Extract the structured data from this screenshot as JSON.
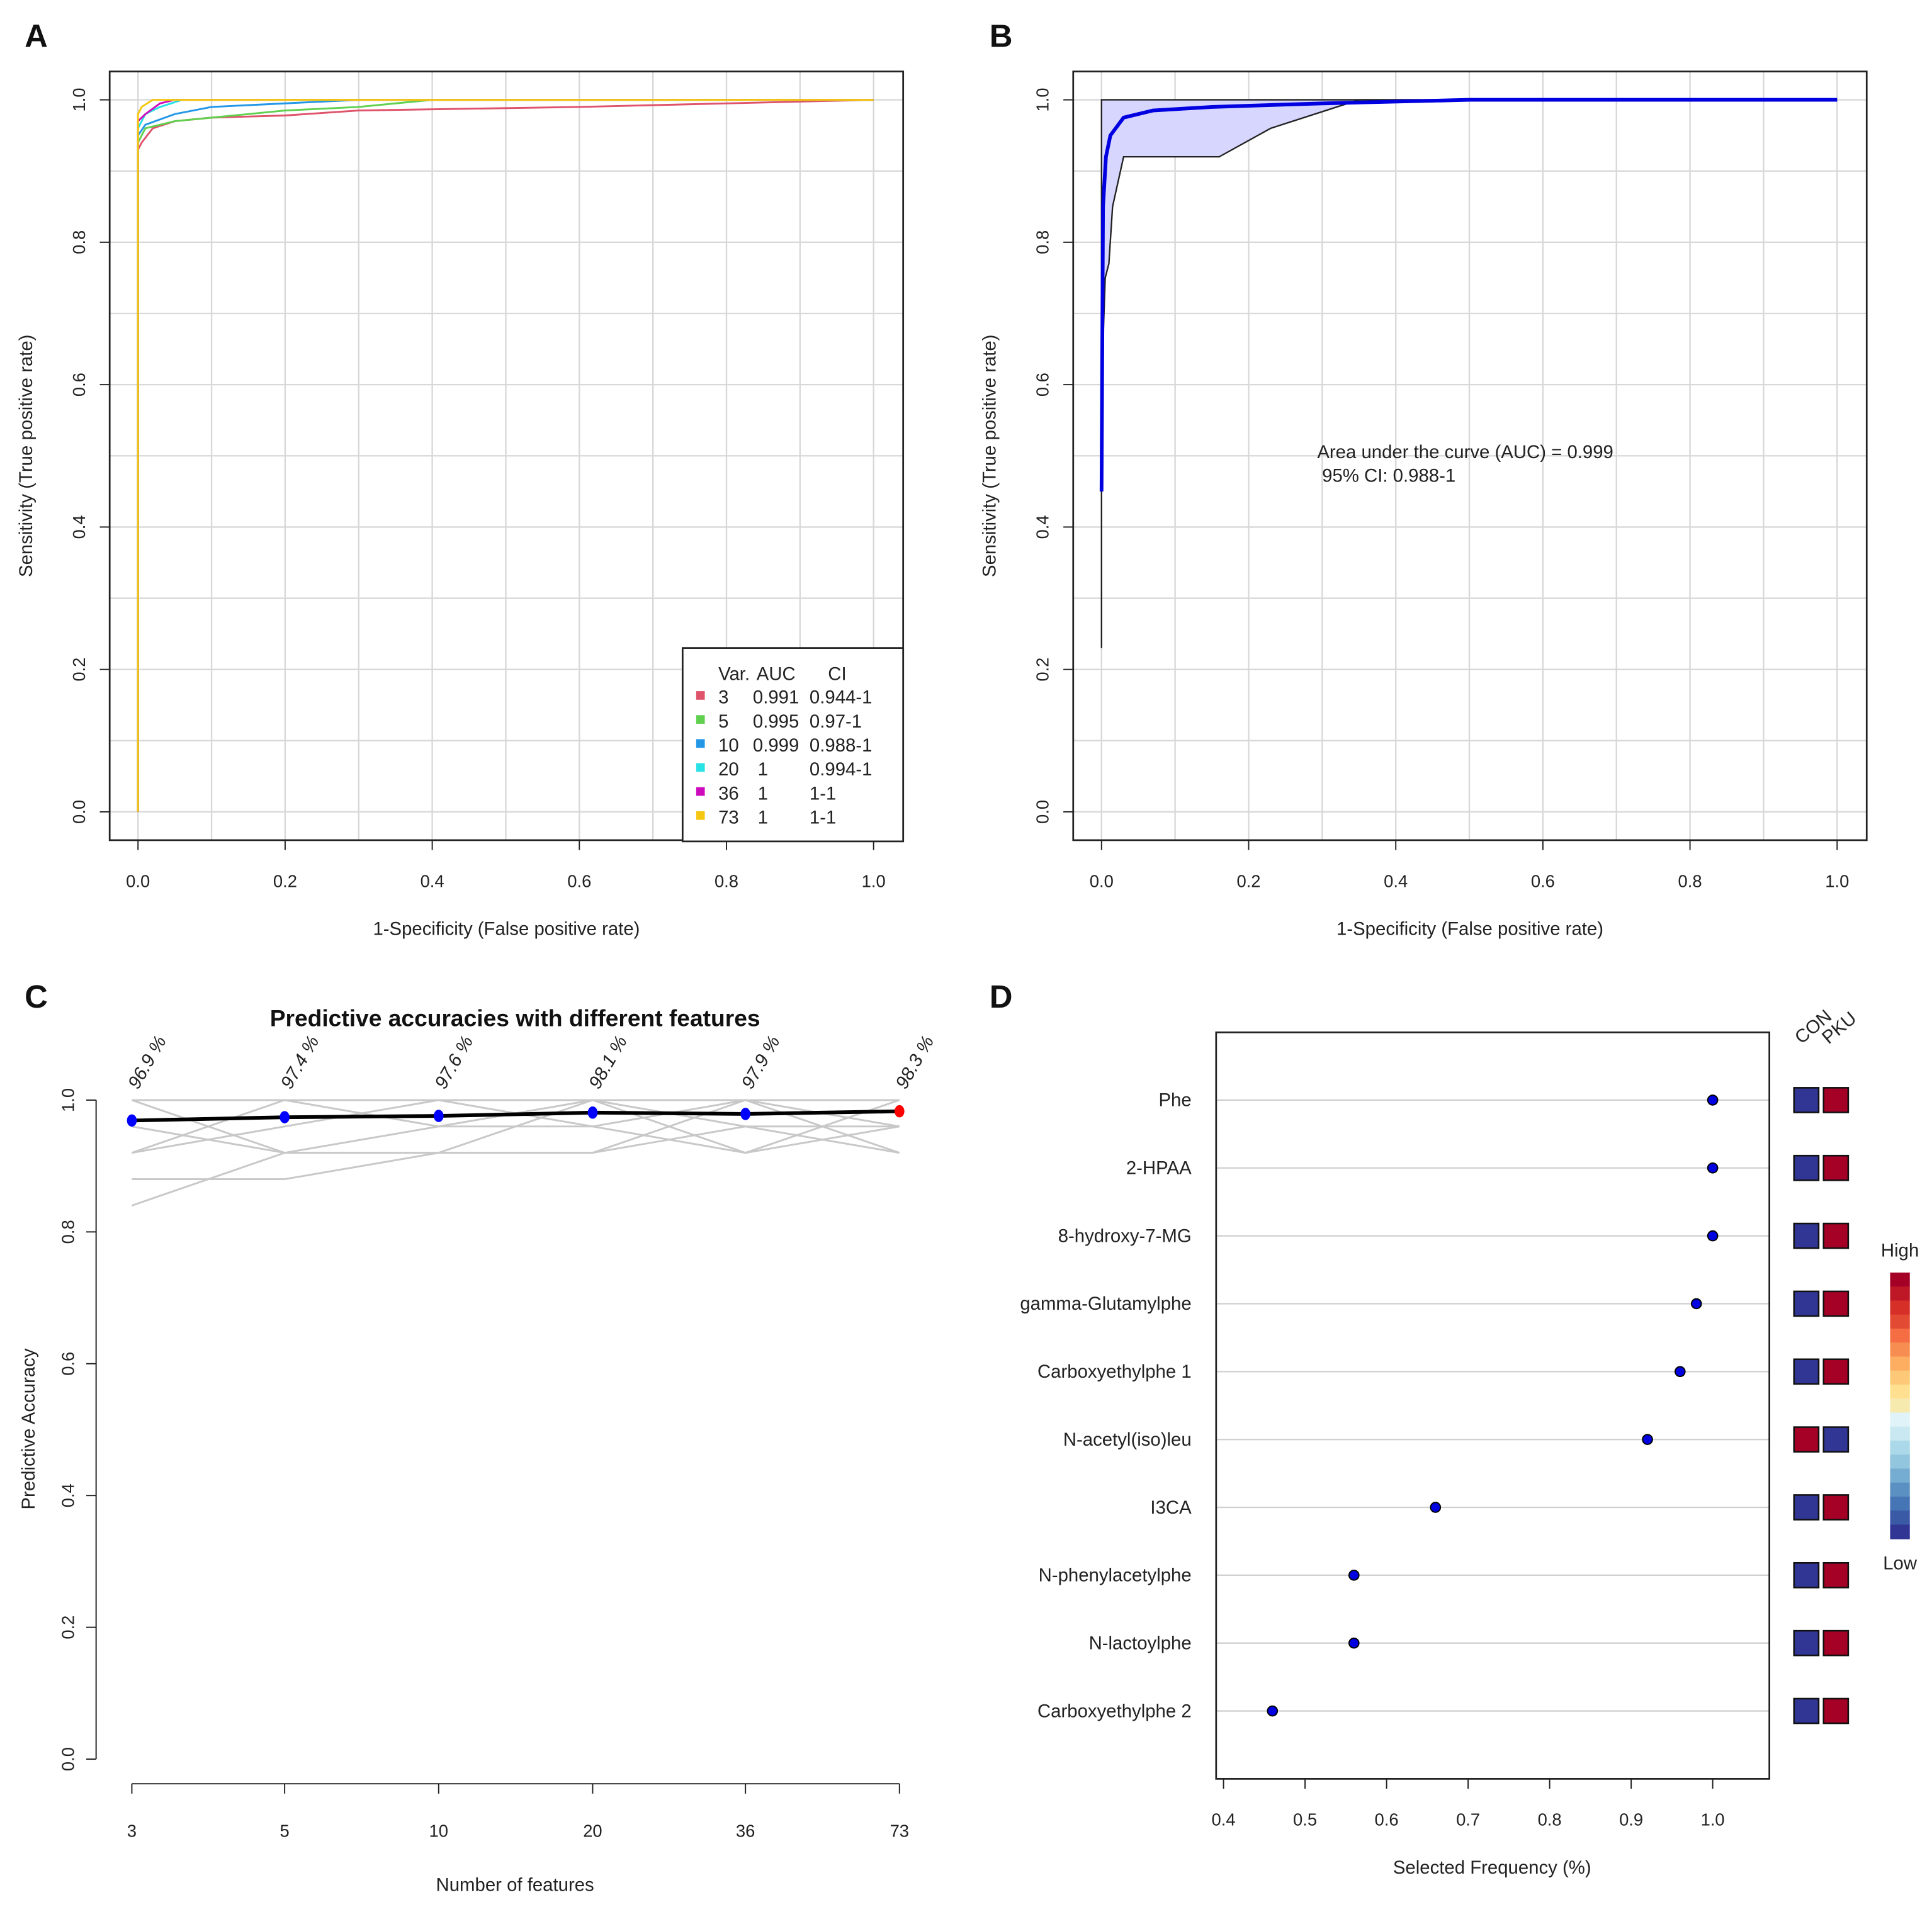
{
  "panels": {
    "a": "A",
    "b": "B",
    "c": "C",
    "d": "D"
  },
  "chart_data": [
    {
      "type": "line",
      "panel": "A",
      "xlabel": "1-Specificity (False positive rate)",
      "ylabel": "Sensitivity (True positive rate)",
      "xlim": [
        0,
        1
      ],
      "ylim": [
        0,
        1
      ],
      "xticks": [
        "0.0",
        "0.2",
        "0.4",
        "0.6",
        "0.8",
        "1.0"
      ],
      "yticks": [
        "0.0",
        "0.2",
        "0.4",
        "0.6",
        "0.8",
        "1.0"
      ],
      "grid": true,
      "legend_position": "bottom-right",
      "legend_header": [
        "Var.",
        "AUC",
        "CI"
      ],
      "series": [
        {
          "name": "3",
          "auc": "0.991",
          "ci": "0.944-1",
          "color": "#df536b",
          "x": [
            0,
            0,
            0.005,
            0.02,
            0.05,
            0.1,
            0.2,
            0.3,
            0.6,
            1
          ],
          "y": [
            0,
            0.93,
            0.94,
            0.96,
            0.97,
            0.975,
            0.978,
            0.985,
            0.99,
            1
          ]
        },
        {
          "name": "5",
          "auc": "0.995",
          "ci": "0.97-1",
          "color": "#61d04f",
          "x": [
            0,
            0,
            0.01,
            0.05,
            0.1,
            0.2,
            0.3,
            0.4,
            1
          ],
          "y": [
            0,
            0.94,
            0.96,
            0.97,
            0.975,
            0.985,
            0.99,
            1,
            1
          ]
        },
        {
          "name": "10",
          "auc": "0.999",
          "ci": "0.988-1",
          "color": "#2297e6",
          "x": [
            0,
            0,
            0.01,
            0.05,
            0.1,
            0.2,
            0.3,
            1
          ],
          "y": [
            0,
            0.95,
            0.965,
            0.98,
            0.99,
            0.995,
            1,
            1
          ]
        },
        {
          "name": "20",
          "auc": "1",
          "ci": "0.994-1",
          "color": "#28e2e5",
          "x": [
            0,
            0,
            0.01,
            0.03,
            0.06,
            1
          ],
          "y": [
            0,
            0.96,
            0.98,
            0.99,
            1,
            1
          ]
        },
        {
          "name": "36",
          "auc": "1",
          "ci": "1-1",
          "color": "#cd0bbc",
          "x": [
            0,
            0,
            0.01,
            0.03,
            0.05,
            1
          ],
          "y": [
            0,
            0.97,
            0.98,
            0.995,
            1,
            1
          ]
        },
        {
          "name": "73",
          "auc": "1",
          "ci": "1-1",
          "color": "#f5c710",
          "x": [
            0,
            0,
            0.005,
            0.02,
            1
          ],
          "y": [
            0,
            0.98,
            0.99,
            1,
            1
          ]
        }
      ]
    },
    {
      "type": "line",
      "panel": "B",
      "xlabel": "1-Specificity (False positive rate)",
      "ylabel": "Sensitivity (True positive rate)",
      "xlim": [
        0,
        1
      ],
      "ylim": [
        0,
        1
      ],
      "xticks": [
        "0.0",
        "0.2",
        "0.4",
        "0.6",
        "0.8",
        "1.0"
      ],
      "yticks": [
        "0.0",
        "0.2",
        "0.4",
        "0.6",
        "0.8",
        "1.0"
      ],
      "grid": true,
      "annotation": [
        "Area under the curve (AUC) = 0.999",
        "95% CI: 0.988-1"
      ],
      "roc": {
        "x": [
          0,
          0.002,
          0.006,
          0.012,
          0.03,
          0.07,
          0.15,
          0.3,
          0.5,
          1
        ],
        "y": [
          0.45,
          0.85,
          0.92,
          0.95,
          0.975,
          0.985,
          0.99,
          0.995,
          1,
          1
        ]
      },
      "ci_upper": {
        "x": [
          0,
          0,
          0.35,
          1
        ],
        "y": [
          0.45,
          1,
          1,
          1
        ]
      },
      "ci_lower": {
        "x": [
          0,
          0,
          0.005,
          0.01,
          0.015,
          0.03,
          0.16,
          0.23,
          0.35,
          1
        ],
        "y": [
          0.23,
          0.6,
          0.75,
          0.77,
          0.85,
          0.92,
          0.92,
          0.96,
          1,
          1
        ]
      }
    },
    {
      "type": "line",
      "panel": "C",
      "title": "Predictive accuracies with different features",
      "xlabel": "Number of features",
      "ylabel": "Predictive Accuracy",
      "categories": [
        "3",
        "5",
        "10",
        "20",
        "36",
        "73"
      ],
      "values": [
        0.969,
        0.974,
        0.976,
        0.981,
        0.979,
        0.983
      ],
      "value_labels": [
        "96.9 %",
        "97.4 %",
        "97.6 %",
        "98.1 %",
        "97.9 %",
        "98.3 %"
      ],
      "best_index": 5,
      "ylim": [
        0,
        1
      ],
      "yticks": [
        "0.0",
        "0.2",
        "0.4",
        "0.6",
        "0.8",
        "1.0"
      ],
      "cv_runs": [
        [
          1,
          1,
          1,
          1,
          1,
          1
        ],
        [
          0.96,
          0.92,
          0.96,
          1,
          0.96,
          0.96
        ],
        [
          0.92,
          1,
          0.96,
          0.96,
          0.92,
          1
        ],
        [
          0.88,
          0.88,
          0.92,
          0.92,
          0.96,
          0.92
        ],
        [
          0.84,
          0.92,
          0.92,
          1,
          0.92,
          0.96
        ],
        [
          0.92,
          0.96,
          1,
          0.96,
          1,
          0.92
        ],
        [
          1,
          0.92,
          0.92,
          0.92,
          1,
          0.96
        ]
      ]
    },
    {
      "type": "scatter",
      "panel": "D",
      "xlabel": "Selected Frequency (%)",
      "xlim": [
        0.4,
        1.0
      ],
      "xticks": [
        "0.4",
        "0.5",
        "0.6",
        "0.7",
        "0.8",
        "0.9",
        "1.0"
      ],
      "categories": [
        "Phe",
        "2-HPAA",
        "8-hydroxy-7-MG",
        "gamma-Glutamylphe",
        "Carboxyethylphe 1",
        "N-acetyl(iso)leu",
        "I3CA",
        "N-phenylacetylphe",
        "N-lactoylphe",
        "Carboxyethylphe 2"
      ],
      "values": [
        1.0,
        1.0,
        1.0,
        0.98,
        0.96,
        0.92,
        0.66,
        0.56,
        0.56,
        0.46
      ],
      "heat_columns": [
        "CON",
        "PKU"
      ],
      "heat": [
        [
          "low",
          "high"
        ],
        [
          "low",
          "high"
        ],
        [
          "low",
          "high"
        ],
        [
          "low",
          "high"
        ],
        [
          "low",
          "high"
        ],
        [
          "high",
          "low"
        ],
        [
          "low",
          "high"
        ],
        [
          "low",
          "high"
        ],
        [
          "low",
          "high"
        ],
        [
          "low",
          "high"
        ]
      ],
      "colorbar": {
        "high": "High",
        "low": "Low",
        "high_color": "#a50026",
        "low_color": "#313695"
      }
    }
  ]
}
